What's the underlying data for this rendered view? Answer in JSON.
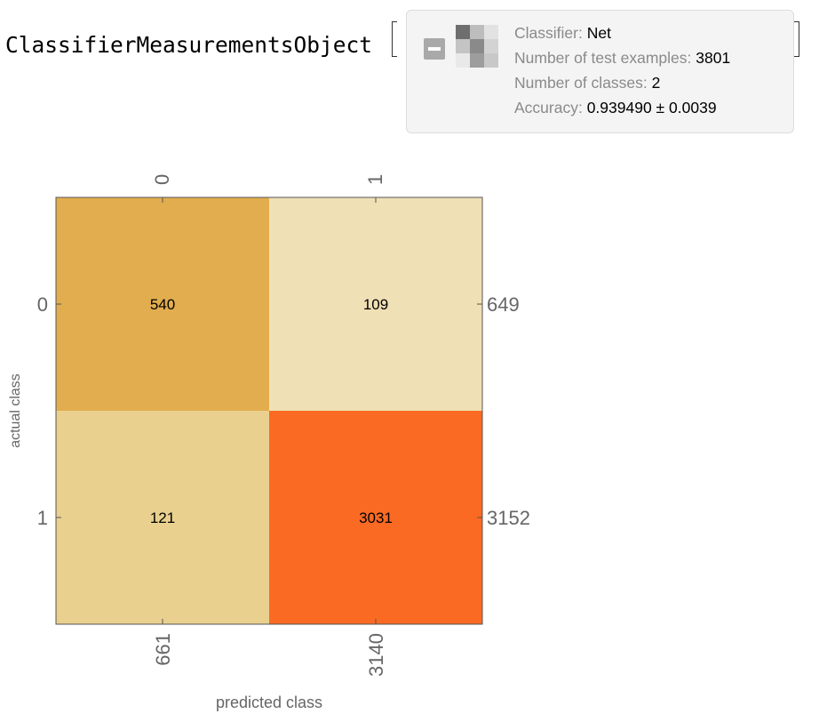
{
  "header": {
    "object_name": "ClassifierMeasurementsObject",
    "summary": {
      "classifier_label": "Classifier:",
      "classifier_value": "Net",
      "examples_label": "Number of test examples:",
      "examples_value": "3801",
      "classes_label": "Number of classes:",
      "classes_value": "2",
      "accuracy_label": "Accuracy:",
      "accuracy_value": "0.939490 ± 0.0039"
    },
    "thumbnail_cells": [
      "#6e6e6e",
      "#bdbdbd",
      "#e2e2e2",
      "#c4c4c4",
      "#8a8a8a",
      "#d3d3d3",
      "#e9e9e9",
      "#9d9d9d",
      "#c8c8c8"
    ]
  },
  "chart_data": {
    "type": "heatmap",
    "title": "",
    "xlabel": "predicted class",
    "ylabel": "actual class",
    "x_categories": [
      "0",
      "1"
    ],
    "y_categories": [
      "0",
      "1"
    ],
    "values": [
      [
        540,
        109
      ],
      [
        121,
        3031
      ]
    ],
    "row_totals": [
      "649",
      "3152"
    ],
    "col_totals": [
      "661",
      "3140"
    ],
    "cell_colors": [
      [
        "#e2ad4e",
        "#f0e0b5"
      ],
      [
        "#e9d08f",
        "#fb6a23"
      ]
    ]
  }
}
